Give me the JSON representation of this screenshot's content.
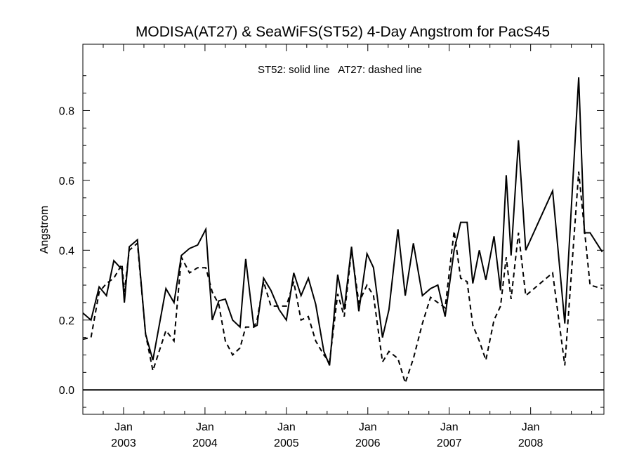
{
  "chart_data": {
    "type": "line",
    "title": "MODISA(AT27) & SeaWiFS(ST52) 4-Day Angstrom for PacS45",
    "ylabel": "Angstrom",
    "xlabel": "",
    "annotation": "ST52: solid line   AT27: dashed line",
    "x_unit": "year",
    "xlim": [
      2002.5,
      2008.9
    ],
    "ylim": [
      -0.07,
      0.99
    ],
    "yticks": [
      0.0,
      0.2,
      0.4,
      0.6,
      0.8
    ],
    "ytick_labels": [
      "0.0",
      "0.2",
      "0.4",
      "0.6",
      "0.8"
    ],
    "xticks": [
      {
        "x": 2003.0,
        "month": "Jan",
        "year": "2003"
      },
      {
        "x": 2004.0,
        "month": "Jan",
        "year": "2004"
      },
      {
        "x": 2005.0,
        "month": "Jan",
        "year": "2005"
      },
      {
        "x": 2006.0,
        "month": "Jan",
        "year": "2006"
      },
      {
        "x": 2007.0,
        "month": "Jan",
        "year": "2007"
      },
      {
        "x": 2008.0,
        "month": "Jan",
        "year": "2008"
      }
    ],
    "reference_line_y": 0.0,
    "series": [
      {
        "name": "ST52",
        "style": "solid",
        "color": "#000000",
        "x": [
          2002.5,
          2002.6,
          2002.7,
          2002.79,
          2002.88,
          2002.98,
          2003.01,
          2003.07,
          2003.17,
          2003.27,
          2003.36,
          2003.52,
          2003.62,
          2003.71,
          2003.81,
          2003.91,
          2004.01,
          2004.09,
          2004.17,
          2004.25,
          2004.34,
          2004.43,
          2004.5,
          2004.6,
          2004.64,
          2004.72,
          2004.81,
          2004.91,
          2005.0,
          2005.09,
          2005.18,
          2005.27,
          2005.36,
          2005.46,
          2005.53,
          2005.63,
          2005.71,
          2005.8,
          2005.89,
          2005.99,
          2006.07,
          2006.18,
          2006.26,
          2006.37,
          2006.46,
          2006.56,
          2006.67,
          2006.77,
          2006.86,
          2006.95,
          2007.06,
          2007.14,
          2007.22,
          2007.29,
          2007.37,
          2007.45,
          2007.55,
          2007.63,
          2007.7,
          2007.76,
          2007.85,
          2007.94,
          2008.27,
          2008.42,
          2008.59,
          2008.66,
          2008.73,
          2008.88
        ],
        "values": [
          0.22,
          0.2,
          0.295,
          0.27,
          0.37,
          0.345,
          0.25,
          0.41,
          0.43,
          0.16,
          0.085,
          0.29,
          0.25,
          0.385,
          0.405,
          0.415,
          0.46,
          0.2,
          0.255,
          0.26,
          0.2,
          0.18,
          0.375,
          0.18,
          0.185,
          0.32,
          0.285,
          0.23,
          0.2,
          0.335,
          0.27,
          0.32,
          0.245,
          0.11,
          0.07,
          0.33,
          0.23,
          0.41,
          0.225,
          0.39,
          0.35,
          0.15,
          0.23,
          0.46,
          0.27,
          0.42,
          0.27,
          0.29,
          0.3,
          0.21,
          0.4,
          0.48,
          0.48,
          0.305,
          0.4,
          0.315,
          0.44,
          0.285,
          0.615,
          0.385,
          0.715,
          0.4,
          0.57,
          0.19,
          0.895,
          0.45,
          0.45,
          0.395
        ]
      },
      {
        "name": "AT27",
        "style": "dashed",
        "color": "#000000",
        "x": [
          2002.5,
          2002.6,
          2002.7,
          2002.79,
          2002.88,
          2002.98,
          2003.01,
          2003.07,
          2003.17,
          2003.27,
          2003.36,
          2003.52,
          2003.62,
          2003.71,
          2003.81,
          2003.91,
          2004.01,
          2004.09,
          2004.17,
          2004.25,
          2004.34,
          2004.43,
          2004.5,
          2004.6,
          2004.64,
          2004.72,
          2004.81,
          2004.91,
          2005.0,
          2005.09,
          2005.18,
          2005.27,
          2005.36,
          2005.46,
          2005.53,
          2005.63,
          2005.71,
          2005.8,
          2005.89,
          2005.99,
          2006.07,
          2006.18,
          2006.26,
          2006.37,
          2006.46,
          2006.56,
          2006.67,
          2006.77,
          2006.86,
          2006.95,
          2007.06,
          2007.14,
          2007.22,
          2007.29,
          2007.37,
          2007.45,
          2007.55,
          2007.63,
          2007.7,
          2007.76,
          2007.85,
          2007.94,
          2008.27,
          2008.42,
          2008.59,
          2008.66,
          2008.73,
          2008.88
        ],
        "values": [
          0.145,
          0.15,
          0.28,
          0.305,
          0.32,
          0.36,
          0.28,
          0.4,
          0.42,
          0.16,
          0.055,
          0.17,
          0.14,
          0.38,
          0.335,
          0.35,
          0.35,
          0.28,
          0.245,
          0.14,
          0.1,
          0.12,
          0.18,
          0.18,
          0.2,
          0.31,
          0.24,
          0.24,
          0.24,
          0.31,
          0.2,
          0.21,
          0.14,
          0.1,
          0.08,
          0.275,
          0.21,
          0.4,
          0.25,
          0.3,
          0.27,
          0.08,
          0.11,
          0.09,
          0.02,
          0.09,
          0.19,
          0.265,
          0.25,
          0.235,
          0.455,
          0.32,
          0.31,
          0.185,
          0.14,
          0.085,
          0.2,
          0.24,
          0.38,
          0.26,
          0.45,
          0.27,
          0.335,
          0.07,
          0.625,
          0.46,
          0.3,
          0.29
        ]
      }
    ]
  }
}
